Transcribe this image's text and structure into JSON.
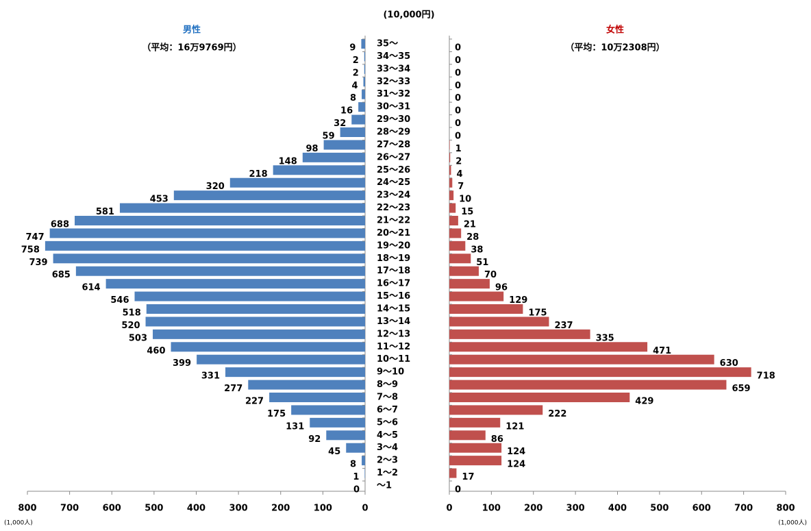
{
  "chart_data": {
    "type": "butterfly",
    "y_unit_label": "(10,000円)",
    "x_unit_label": "(1,000人)",
    "categories": [
      "35～",
      "34～35",
      "33～34",
      "32～33",
      "31～32",
      "30～31",
      "29～30",
      "28～29",
      "27～28",
      "26～27",
      "25～26",
      "24～25",
      "23～24",
      "22～23",
      "21～22",
      "20～21",
      "19～20",
      "18～19",
      "17～18",
      "16～17",
      "15～16",
      "14～15",
      "13～14",
      "12～13",
      "11～12",
      "10～11",
      "9～10",
      "8～9",
      "7～8",
      "6～7",
      "5～6",
      "4～5",
      "3～4",
      "2～3",
      "1～2",
      "～1"
    ],
    "series": [
      {
        "name": "男性",
        "subtitle": "（平均：16万9769円）",
        "name_color": "#1f6fc0",
        "color": "#4f81bd",
        "values": [
          9,
          2,
          2,
          4,
          8,
          16,
          32,
          59,
          98,
          148,
          218,
          320,
          453,
          581,
          688,
          747,
          758,
          739,
          685,
          614,
          546,
          518,
          520,
          503,
          460,
          399,
          331,
          277,
          227,
          175,
          131,
          92,
          45,
          8,
          1,
          0
        ]
      },
      {
        "name": "女性",
        "subtitle": "（平均：10万2308円）",
        "name_color": "#c00000",
        "color": "#c0504d",
        "values": [
          0,
          0,
          0,
          0,
          0,
          0,
          0,
          0,
          1,
          2,
          4,
          7,
          10,
          15,
          21,
          28,
          38,
          51,
          70,
          96,
          129,
          175,
          237,
          335,
          471,
          630,
          718,
          659,
          429,
          222,
          121,
          86,
          124,
          124,
          17,
          0
        ]
      }
    ],
    "xlim": [
      0,
      800
    ],
    "xticks": [
      0,
      100,
      200,
      300,
      400,
      500,
      600,
      700,
      800
    ]
  }
}
